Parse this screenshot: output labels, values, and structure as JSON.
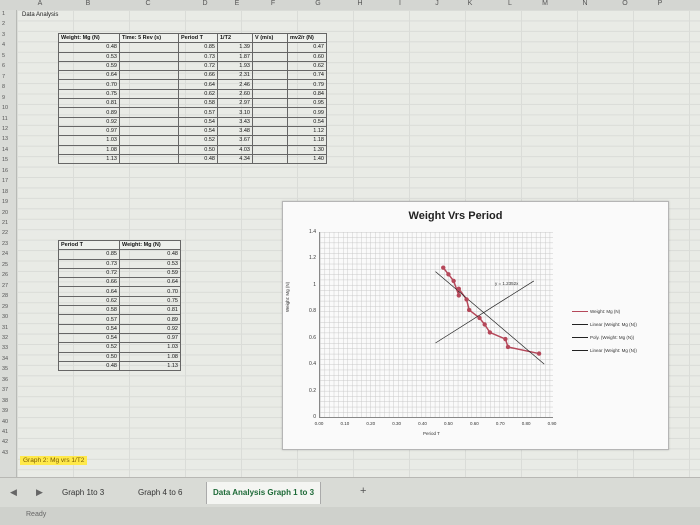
{
  "columns": [
    "A",
    "B",
    "C",
    "D",
    "E",
    "F",
    "G",
    "H",
    "I",
    "J",
    "K",
    "L",
    "M",
    "N",
    "O",
    "P"
  ],
  "rows": [
    "1",
    "2",
    "3",
    "4",
    "5",
    "6",
    "7",
    "8",
    "9",
    "10",
    "11",
    "12",
    "13",
    "14",
    "15",
    "16",
    "17",
    "18",
    "19",
    "20",
    "21",
    "22",
    "23",
    "24",
    "25",
    "26",
    "27",
    "28",
    "29",
    "30",
    "31",
    "32",
    "33",
    "34",
    "35",
    "36",
    "37",
    "38",
    "39",
    "40",
    "41",
    "42",
    "43"
  ],
  "sheet_title": "Data Analysis",
  "table1": {
    "headers": [
      "Weight: Mg (N)",
      "Time: 5 Rev (s)",
      "Period T",
      "1/T2",
      "V (m/s)",
      "mv2/r (N)"
    ],
    "rows": [
      [
        "0.48",
        "",
        "0.85",
        "1.39",
        "",
        "0.47"
      ],
      [
        "0.53",
        "",
        "0.73",
        "1.87",
        "",
        "0.60"
      ],
      [
        "0.59",
        "",
        "0.72",
        "1.93",
        "",
        "0.62"
      ],
      [
        "0.64",
        "",
        "0.66",
        "2.31",
        "",
        "0.74"
      ],
      [
        "0.70",
        "",
        "0.64",
        "2.46",
        "",
        "0.79"
      ],
      [
        "0.75",
        "",
        "0.62",
        "2.60",
        "",
        "0.84"
      ],
      [
        "0.81",
        "",
        "0.58",
        "2.97",
        "",
        "0.95"
      ],
      [
        "0.89",
        "",
        "0.57",
        "3.10",
        "",
        "0.99"
      ],
      [
        "0.92",
        "",
        "0.54",
        "3.43",
        "",
        "0.54"
      ],
      [
        "0.97",
        "",
        "0.54",
        "3.48",
        "",
        "1.12"
      ],
      [
        "1.03",
        "",
        "0.52",
        "3.67",
        "",
        "1.18"
      ],
      [
        "1.08",
        "",
        "0.50",
        "4.03",
        "",
        "1.30"
      ],
      [
        "1.13",
        "",
        "0.48",
        "4.34",
        "",
        "1.40"
      ]
    ]
  },
  "table2": {
    "headers": [
      "Period T",
      "Weight: Mg (N)"
    ],
    "rows": [
      [
        "0.85",
        "0.48"
      ],
      [
        "0.73",
        "0.53"
      ],
      [
        "0.72",
        "0.59"
      ],
      [
        "0.66",
        "0.64"
      ],
      [
        "0.64",
        "0.70"
      ],
      [
        "0.62",
        "0.75"
      ],
      [
        "0.58",
        "0.81"
      ],
      [
        "0.57",
        "0.89"
      ],
      [
        "0.54",
        "0.92"
      ],
      [
        "0.54",
        "0.97"
      ],
      [
        "0.52",
        "1.03"
      ],
      [
        "0.50",
        "1.08"
      ],
      [
        "0.48",
        "1.13"
      ]
    ]
  },
  "chart_data": {
    "type": "scatter",
    "title": "Weight Vrs Period",
    "xlabel": "Period T",
    "ylabel": "Weight: Mg (N)",
    "xlim": [
      0,
      0.9
    ],
    "ylim": [
      0,
      1.4
    ],
    "xticks": [
      "0.00",
      "0.10",
      "0.20",
      "0.30",
      "0.40",
      "0.50",
      "0.60",
      "0.70",
      "0.80",
      "0.90"
    ],
    "yticks": [
      "0",
      "0.2",
      "0.4",
      "0.6",
      "0.8",
      "1",
      "1.2",
      "1.4"
    ],
    "trend_label": "y = 1.2352x",
    "legend_position": "right",
    "series": [
      {
        "name": "Weight: Mg (N)",
        "color": "#b5485a",
        "x": [
          0.85,
          0.73,
          0.72,
          0.66,
          0.64,
          0.62,
          0.58,
          0.57,
          0.54,
          0.54,
          0.52,
          0.5,
          0.48
        ],
        "y": [
          0.48,
          0.53,
          0.59,
          0.64,
          0.7,
          0.75,
          0.81,
          0.89,
          0.92,
          0.97,
          1.03,
          1.08,
          1.13
        ]
      },
      {
        "name": "Linear (Weight: Mg (N))",
        "color": "#222222"
      },
      {
        "name": "Poly. (Weight: Mg (N))",
        "color": "#222222"
      },
      {
        "name": "Linear (Weight: Mg (N))",
        "color": "#222222"
      }
    ]
  },
  "graph2_label": "Graph 2: Mg vrs 1/T2",
  "tabs": [
    "Graph 1to 3",
    "Graph 4 to 6",
    "Data Analysis Graph 1 to 3"
  ],
  "add_tab": "+",
  "status": "Ready"
}
